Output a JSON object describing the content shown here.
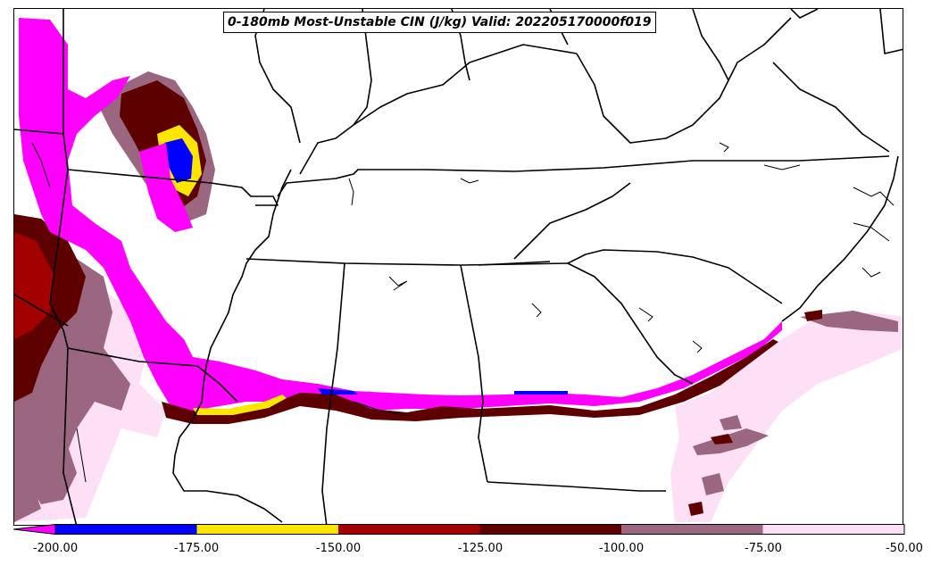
{
  "title": "0-180mb Most-Unstable CIN (J/kg) Valid: 202205170000f019",
  "colorbar": {
    "ticks": [
      "-200.00",
      "-175.00",
      "-150.00",
      "-125.00",
      "-100.00",
      "-75.00",
      "-50.00"
    ],
    "colors": [
      "#ff00ff",
      "#0000ff",
      "#ffe600",
      "#a30000",
      "#5e0000",
      "#9a6680",
      "#fde0f5"
    ],
    "extend": "min"
  }
}
